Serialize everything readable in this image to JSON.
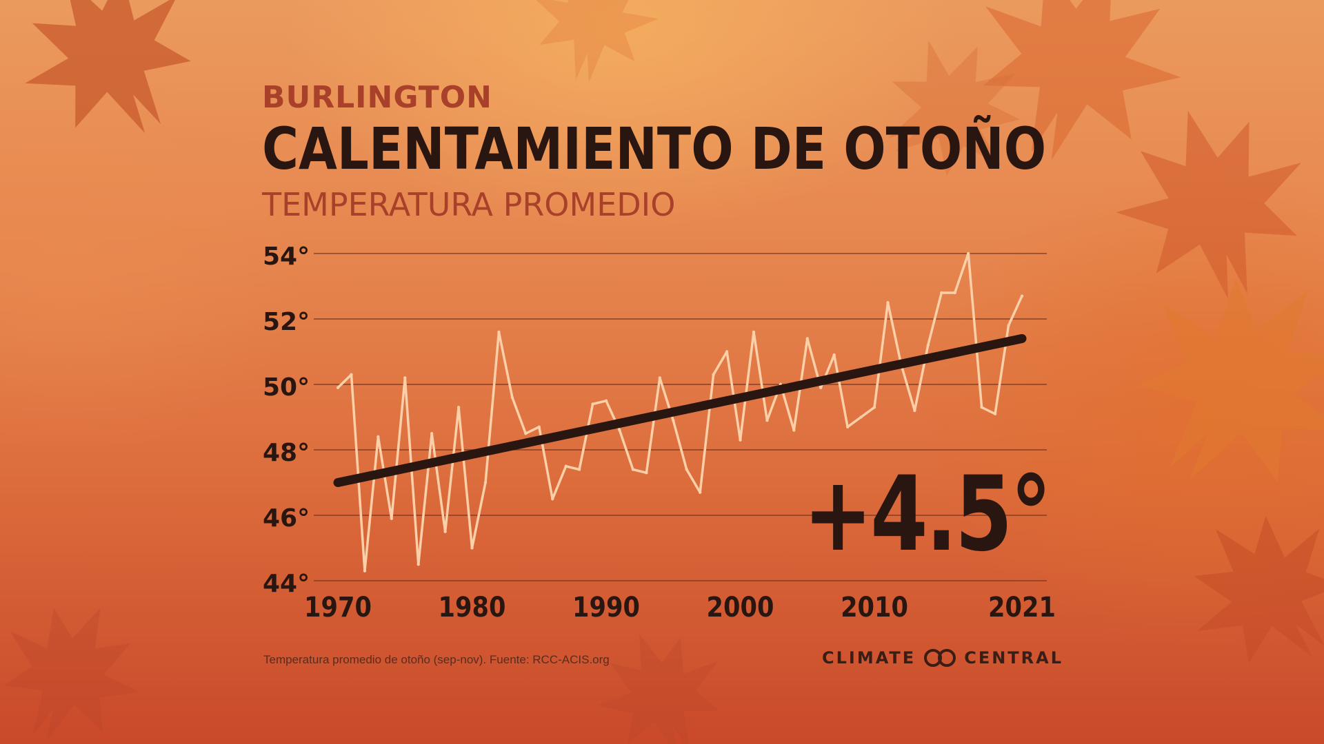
{
  "header": {
    "city": "BURLINGTON",
    "title": "CALENTAMIENTO DE OTOÑO",
    "subtitle": "TEMPERATURA PROMEDIO"
  },
  "footnote": "Temperatura promedio de otoño (sep-nov). Fuente: RCC-ACIS.org",
  "brand": {
    "left": "CLIMATE",
    "right": "CENTRAL",
    "logo_icon": "infinity-rings-icon"
  },
  "colors": {
    "data_line": "#fbd0a8",
    "trend_line": "#2a1610",
    "text_dark": "#2a1610",
    "accent_red": "#a8402a",
    "grid": "#6e3320"
  },
  "chart_data": {
    "type": "line",
    "change_label": "+4.5°",
    "ylim": [
      44,
      54
    ],
    "y_ticks": [
      44,
      46,
      48,
      50,
      52,
      54
    ],
    "y_tick_labels": [
      "44°",
      "46°",
      "48°",
      "50°",
      "52°",
      "54°"
    ],
    "xlim": [
      1970,
      2021
    ],
    "x_ticks": [
      1970,
      1980,
      1990,
      2000,
      2010,
      2021
    ],
    "x_tick_labels": [
      "1970",
      "1980",
      "1990",
      "2000",
      "2010",
      "2021"
    ],
    "grid": true,
    "series": [
      {
        "x": [
          1970,
          1971,
          1972,
          1973,
          1974,
          1975,
          1976,
          1977,
          1978,
          1979,
          1980,
          1981,
          1982,
          1983,
          1984,
          1985,
          1986,
          1987,
          1988,
          1989,
          1990,
          1991,
          1992,
          1993,
          1994,
          1995,
          1996,
          1997,
          1998,
          1999,
          2000,
          2001,
          2002,
          2003,
          2004,
          2005,
          2006,
          2007,
          2008,
          2009,
          2010,
          2011,
          2012,
          2013,
          2014,
          2015,
          2016,
          2017,
          2018,
          2019,
          2020,
          2021
        ],
        "y": [
          49.9,
          50.3,
          44.3,
          48.4,
          45.9,
          50.2,
          44.5,
          48.5,
          45.5,
          49.3,
          45.0,
          47.0,
          51.6,
          49.6,
          48.5,
          48.7,
          46.5,
          47.5,
          47.4,
          49.4,
          49.5,
          48.6,
          47.4,
          47.3,
          50.2,
          48.9,
          47.4,
          46.7,
          50.3,
          51.0,
          48.3,
          51.6,
          48.9,
          50.0,
          48.6,
          51.4,
          49.9,
          50.9,
          48.7,
          49.0,
          49.3,
          52.5,
          50.6,
          49.2,
          51.2,
          52.8,
          52.8,
          54.0,
          49.3,
          49.1,
          51.8,
          52.7
        ]
      },
      {
        "x": [
          1970,
          2021
        ],
        "y": [
          47.0,
          51.4
        ]
      }
    ]
  }
}
